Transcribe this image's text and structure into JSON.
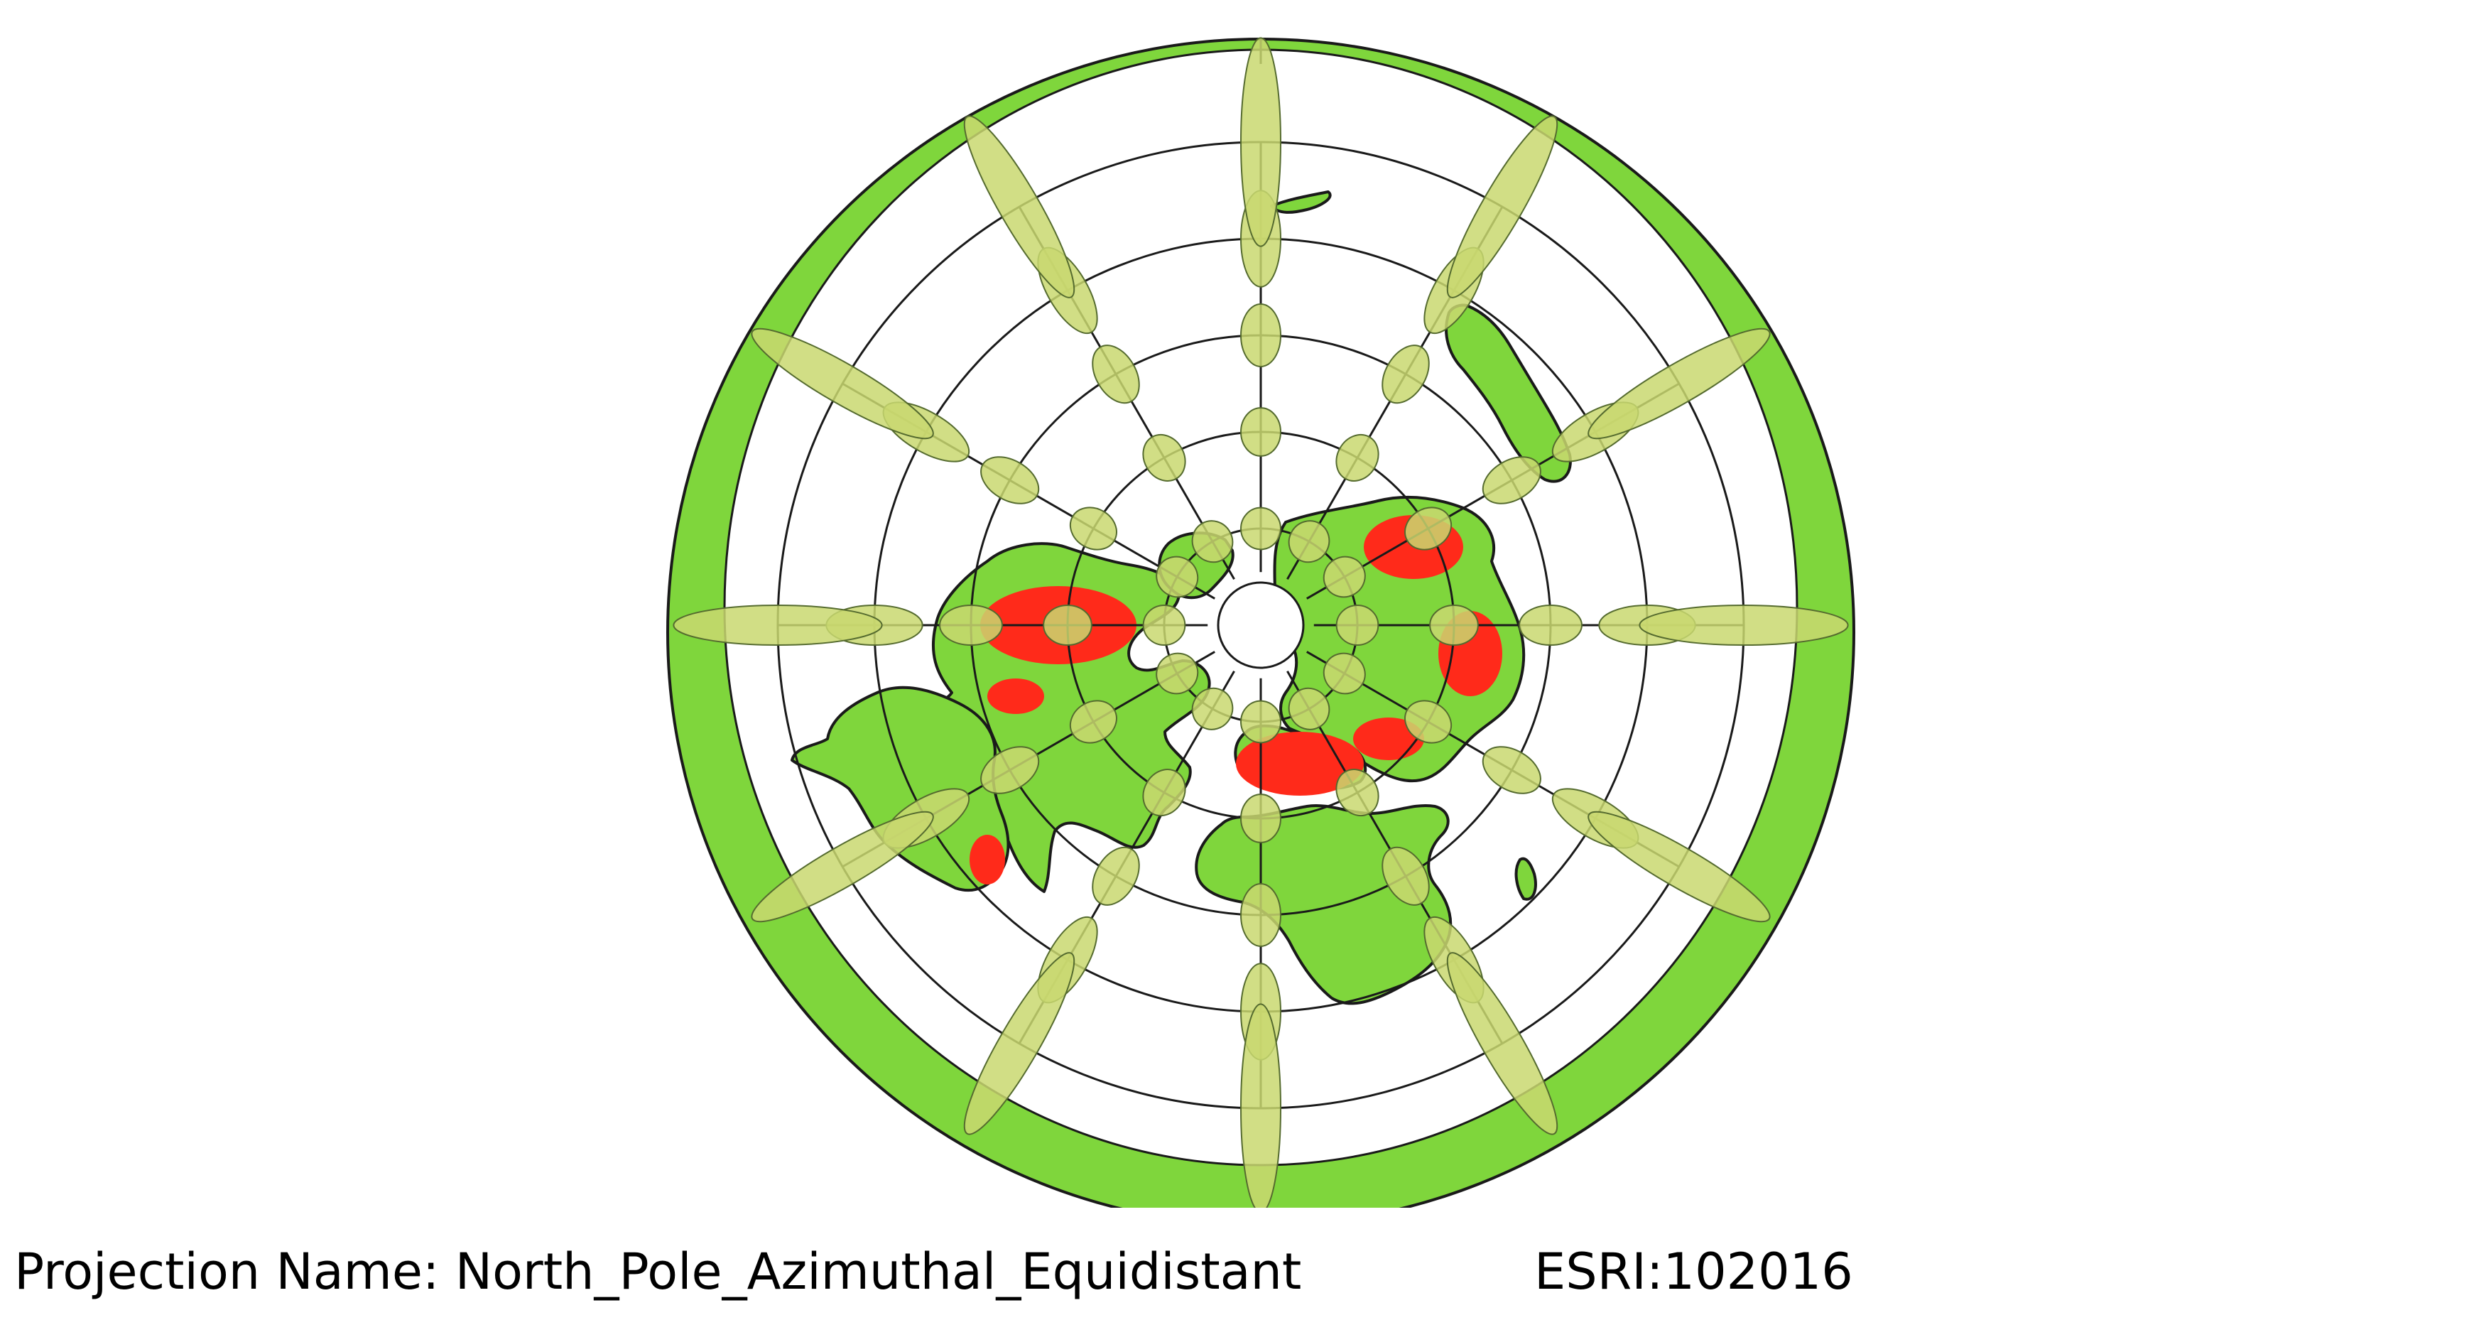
{
  "map": {
    "projection_label": "Projection Name: North_Pole_Azimuthal_Equidistant",
    "projection_code": "ESRI:102016",
    "graticule": {
      "latitude_rings_deg": [
        60,
        30,
        0,
        -30,
        -60
      ],
      "meridians_deg": [
        0,
        30,
        60,
        90,
        120,
        150,
        180,
        210,
        240,
        270,
        300,
        330
      ],
      "outer_limit_deg": -90
    },
    "tissot_indicatrix_latitudes_deg": [
      60,
      30,
      0,
      -30,
      -60
    ],
    "colors": {
      "land": "#7fd63c",
      "outer_ring": "#7fd63c",
      "points": "#ff2a1a",
      "tissot_fill": "#c9d870",
      "outline": "#1a1a1a",
      "ocean": "#ffffff"
    }
  }
}
